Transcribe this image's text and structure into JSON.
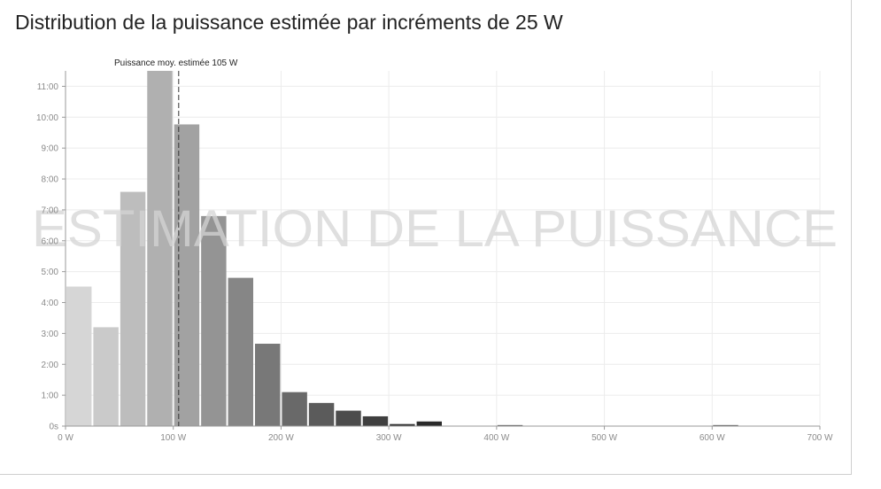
{
  "chart_data": {
    "type": "bar",
    "title": "Distribution de la puissance estimée par incréments de 25 W",
    "xlabel": "",
    "ylabel": "",
    "bin_width": 25,
    "xlim": [
      0,
      700
    ],
    "ylim_minutes": [
      0,
      690
    ],
    "x_ticks": [
      0,
      100,
      200,
      300,
      400,
      500,
      600,
      700
    ],
    "x_tick_labels": [
      "0 W",
      "100 W",
      "200 W",
      "300 W",
      "400 W",
      "500 W",
      "600 W",
      "700 W"
    ],
    "y_ticks_minutes": [
      0,
      60,
      120,
      180,
      240,
      300,
      360,
      420,
      480,
      540,
      600,
      660
    ],
    "y_tick_labels": [
      "0s",
      "1:00",
      "2:00",
      "3:00",
      "4:00",
      "5:00",
      "6:00",
      "7:00",
      "8:00",
      "9:00",
      "10:00",
      "11:00"
    ],
    "bars": [
      {
        "x_start": 0,
        "minutes": 271,
        "color": "#d6d6d6"
      },
      {
        "x_start": 25,
        "minutes": 192,
        "color": "#cacaca"
      },
      {
        "x_start": 50,
        "minutes": 455,
        "color": "#bdbdbd"
      },
      {
        "x_start": 75,
        "minutes": 694,
        "color": "#b0b0b0"
      },
      {
        "x_start": 100,
        "minutes": 586,
        "color": "#a2a2a2"
      },
      {
        "x_start": 125,
        "minutes": 408,
        "color": "#949494"
      },
      {
        "x_start": 150,
        "minutes": 288,
        "color": "#868686"
      },
      {
        "x_start": 175,
        "minutes": 160,
        "color": "#787878"
      },
      {
        "x_start": 200,
        "minutes": 66,
        "color": "#696969"
      },
      {
        "x_start": 225,
        "minutes": 45,
        "color": "#5b5b5b"
      },
      {
        "x_start": 250,
        "minutes": 30,
        "color": "#4c4c4c"
      },
      {
        "x_start": 275,
        "minutes": 19,
        "color": "#3f3f3f"
      },
      {
        "x_start": 300,
        "minutes": 4,
        "color": "#333333"
      },
      {
        "x_start": 325,
        "minutes": 9,
        "color": "#2a2a2a"
      },
      {
        "x_start": 400,
        "minutes": 2,
        "color": "#555555"
      },
      {
        "x_start": 600,
        "minutes": 2,
        "color": "#555555"
      }
    ],
    "annotation": {
      "label": "Puissance moy. estimée 105 W",
      "value": 105
    },
    "watermark": "ESTIMATION DE LA PUISSANCE",
    "grid": true,
    "legend": "none"
  }
}
